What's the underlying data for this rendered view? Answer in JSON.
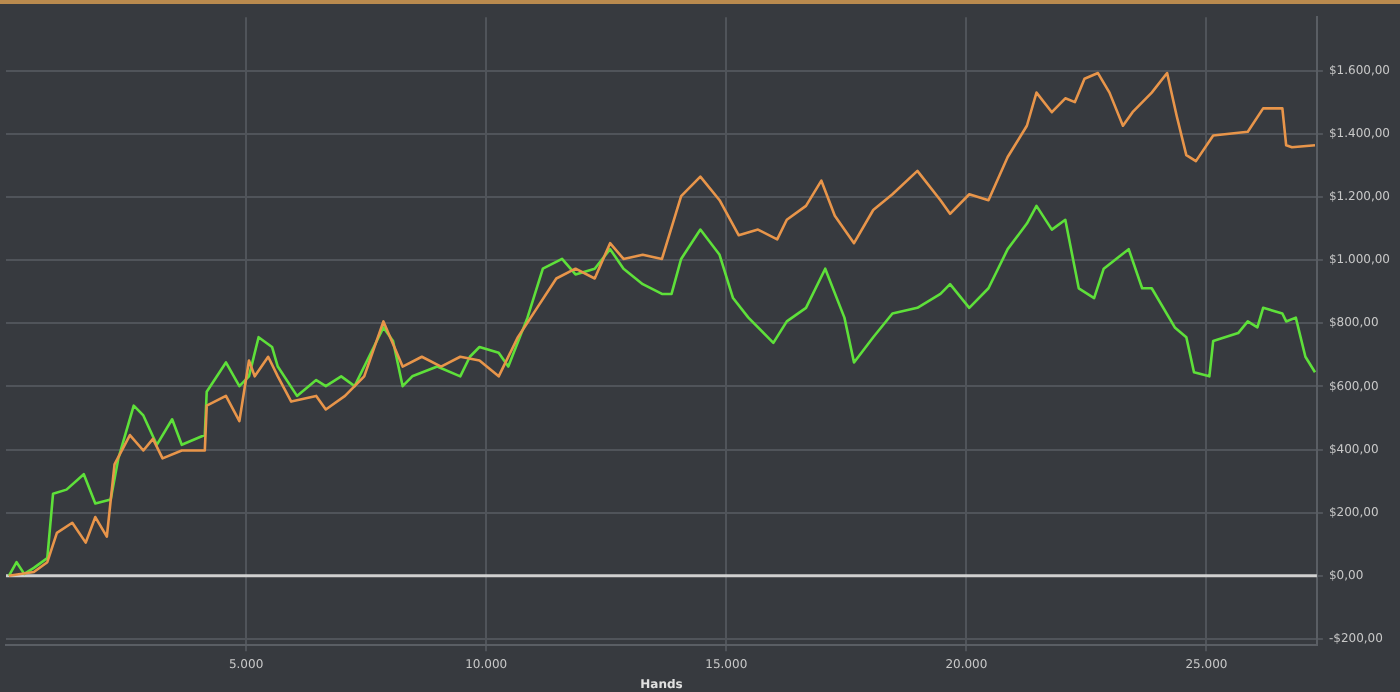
{
  "chart_data": {
    "type": "line",
    "xlabel": "Hands",
    "xlim": [
      0,
      27300
    ],
    "ylim": [
      -220,
      1770
    ],
    "xticks": [
      {
        "value": 5000,
        "label": "5.000"
      },
      {
        "value": 10000,
        "label": "10.000"
      },
      {
        "value": 15000,
        "label": "15.000"
      },
      {
        "value": 20000,
        "label": "20.000"
      },
      {
        "value": 25000,
        "label": "25.000"
      }
    ],
    "yticks": [
      {
        "value": -200,
        "label": "-$200,00"
      },
      {
        "value": 0,
        "label": "$0,00"
      },
      {
        "value": 200,
        "label": "$200,00"
      },
      {
        "value": 400,
        "label": "$400,00"
      },
      {
        "value": 600,
        "label": "$600,00"
      },
      {
        "value": 800,
        "label": "$800,00"
      },
      {
        "value": 1000,
        "label": "$1.000,00"
      },
      {
        "value": 1200,
        "label": "$1.200,00"
      },
      {
        "value": 1400,
        "label": "$1.400,00"
      },
      {
        "value": 1600,
        "label": "$1.600,00"
      }
    ],
    "grid": true,
    "legend": false,
    "marker": "none",
    "line_style": "solid",
    "ref_lines": [
      {
        "axis": "y",
        "value": 0,
        "color": "#d0d0d0"
      }
    ],
    "series": [
      {
        "color": "#e8954a",
        "x": [
          60,
          580,
          860,
          1060,
          1380,
          1660,
          1860,
          2100,
          2260,
          2580,
          2860,
          3060,
          3260,
          3660,
          4140,
          4180,
          4580,
          4860,
          5060,
          5180,
          5460,
          5660,
          5940,
          6460,
          6660,
          7060,
          7460,
          7860,
          8260,
          8660,
          9060,
          9460,
          9860,
          10260,
          10660,
          11060,
          11460,
          11860,
          12260,
          12580,
          12860,
          13260,
          13660,
          14060,
          14460,
          14860,
          15260,
          15660,
          16060,
          16260,
          16660,
          16980,
          17260,
          17660,
          18060,
          18460,
          18980,
          19460,
          19660,
          20060,
          20460,
          20860,
          21260,
          21460,
          21780,
          22060,
          22260,
          22460,
          22740,
          22980,
          23260,
          23460,
          23860,
          24180,
          24380,
          24580,
          24780,
          25140,
          25860,
          26180,
          26580,
          26660,
          26780,
          27260
        ],
        "values": [
          0,
          12,
          43,
          136,
          168,
          105,
          186,
          124,
          353,
          446,
          397,
          434,
          372,
          397,
          397,
          539,
          570,
          490,
          682,
          632,
          694,
          632,
          552,
          570,
          527,
          570,
          632,
          806,
          663,
          694,
          663,
          694,
          682,
          632,
          756,
          849,
          942,
          973,
          942,
          1054,
          1004,
          1017,
          1004,
          1203,
          1265,
          1190,
          1079,
          1097,
          1066,
          1128,
          1172,
          1252,
          1141,
          1054,
          1159,
          1209,
          1283,
          1190,
          1147,
          1209,
          1190,
          1327,
          1426,
          1531,
          1469,
          1513,
          1501,
          1575,
          1593,
          1531,
          1426,
          1469,
          1531,
          1593,
          1457,
          1333,
          1314,
          1395,
          1407,
          1481,
          1481,
          1364,
          1358,
          1364
        ]
      },
      {
        "color": "#5ee03a",
        "x": [
          60,
          220,
          380,
          580,
          860,
          980,
          1260,
          1620,
          1860,
          2180,
          2340,
          2660,
          2860,
          3140,
          3460,
          3660,
          4140,
          4180,
          4580,
          4860,
          5060,
          5260,
          5540,
          5660,
          6060,
          6460,
          6660,
          6980,
          7260,
          7660,
          7860,
          8060,
          8260,
          8460,
          8980,
          9460,
          9660,
          9860,
          10260,
          10460,
          10860,
          11180,
          11580,
          11860,
          12260,
          12580,
          12860,
          13260,
          13660,
          13860,
          14060,
          14460,
          14860,
          15140,
          15460,
          15980,
          16260,
          16660,
          17060,
          17460,
          17660,
          18060,
          18460,
          18980,
          19460,
          19660,
          20060,
          20460,
          20860,
          21260,
          21460,
          21780,
          22060,
          22340,
          22660,
          22860,
          23380,
          23660,
          23860,
          24340,
          24580,
          24740,
          25060,
          25140,
          25660,
          25860,
          26060,
          26180,
          26580,
          26660,
          26860,
          27060,
          27260
        ],
        "values": [
          0,
          43,
          6,
          25,
          56,
          260,
          273,
          322,
          229,
          242,
          372,
          539,
          508,
          415,
          496,
          415,
          446,
          583,
          676,
          601,
          632,
          756,
          725,
          663,
          570,
          620,
          601,
          632,
          601,
          725,
          787,
          744,
          601,
          632,
          663,
          632,
          694,
          725,
          707,
          663,
          818,
          973,
          1004,
          955,
          973,
          1035,
          973,
          924,
          893,
          893,
          1004,
          1097,
          1017,
          880,
          818,
          738,
          806,
          849,
          973,
          818,
          676,
          756,
          831,
          849,
          893,
          924,
          849,
          911,
          1035,
          1116,
          1172,
          1097,
          1128,
          911,
          880,
          973,
          1035,
          911,
          911,
          787,
          756,
          645,
          632,
          744,
          769,
          806,
          787,
          849,
          831,
          806,
          818,
          694,
          645
        ]
      }
    ]
  }
}
